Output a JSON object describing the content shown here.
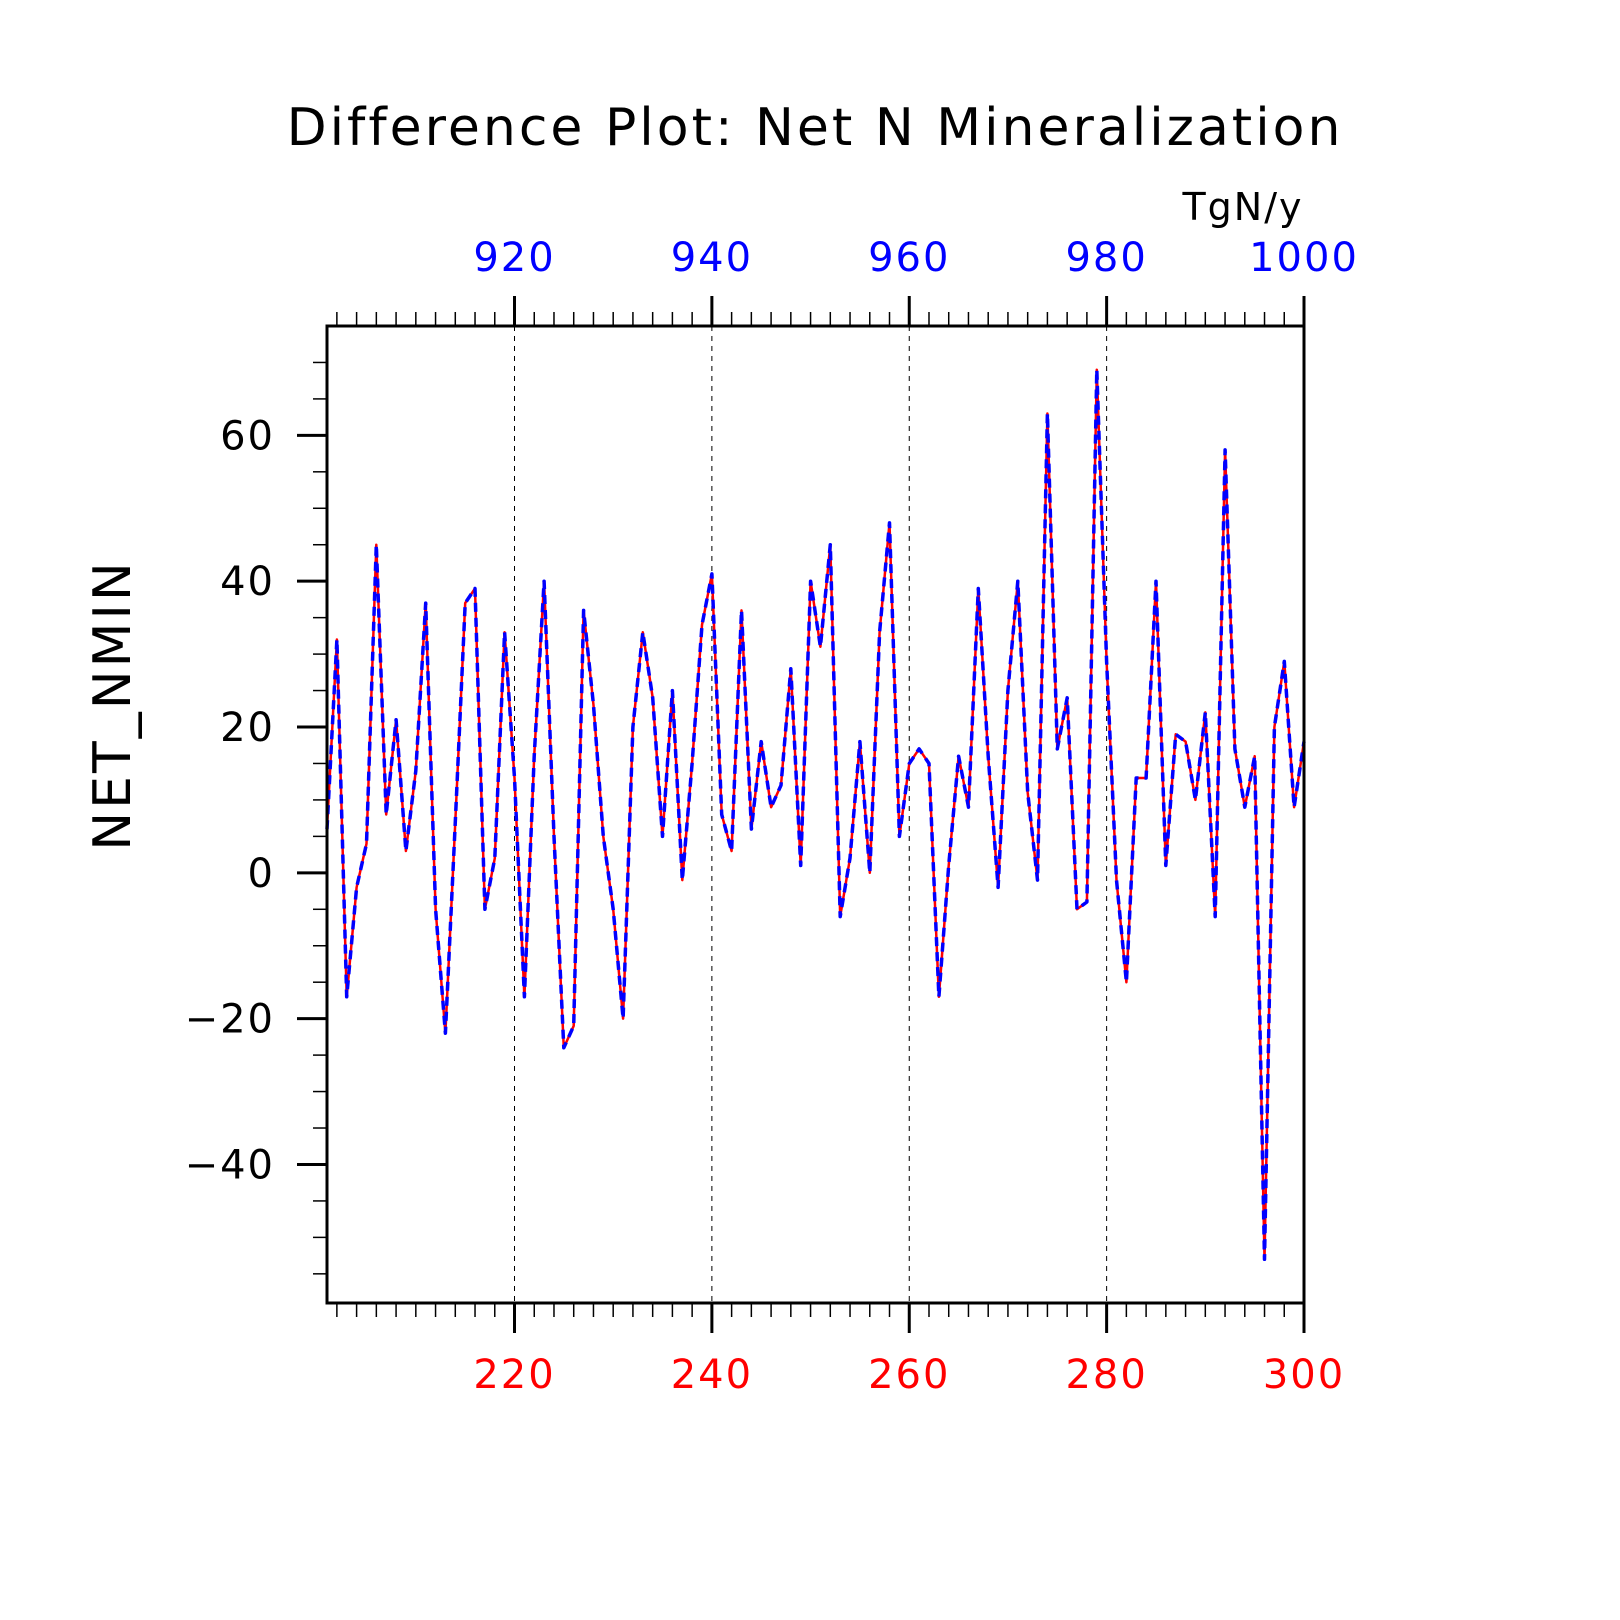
{
  "chart_data": {
    "type": "line",
    "title": "Difference Plot: Net N Mineralization",
    "units": "TgN/y",
    "ylabel": "NET_NMIN",
    "xlabel": "",
    "xlim": [
      201,
      300
    ],
    "ylim": [
      -59,
      75
    ],
    "top_xlim": [
      901,
      1000
    ],
    "bottom_ticks": [
      "220",
      "240",
      "260",
      "280",
      "300"
    ],
    "bottom_tick_values": [
      220,
      240,
      260,
      280,
      300
    ],
    "top_ticks": [
      "920",
      "940",
      "960",
      "980",
      "1000"
    ],
    "top_tick_values": [
      920,
      940,
      960,
      980,
      1000
    ],
    "y_ticks": [
      "60",
      "40",
      "20",
      "0",
      "−20",
      "−40"
    ],
    "y_tick_values": [
      60,
      40,
      20,
      0,
      -20,
      -40
    ],
    "grid": "vertical dashed at major x ticks",
    "colors": {
      "bottom_axis": "#ff0000",
      "top_axis": "#0000ff",
      "frame": "#000000"
    },
    "series": [
      {
        "axis": "bottom",
        "color": "#ff0000",
        "style": "solid",
        "x": [
          201,
          202,
          203,
          204,
          205,
          206,
          207,
          208,
          209,
          210,
          211,
          212,
          213,
          214,
          215,
          216,
          217,
          218,
          219,
          220,
          221,
          222,
          223,
          224,
          225,
          226,
          227,
          228,
          229,
          230,
          231,
          232,
          233,
          234,
          235,
          236,
          237,
          238,
          239,
          240,
          241,
          242,
          243,
          244,
          245,
          246,
          247,
          248,
          249,
          250,
          251,
          252,
          253,
          254,
          255,
          256,
          257,
          258,
          259,
          260,
          261,
          262,
          263,
          264,
          265,
          266,
          267,
          268,
          269,
          270,
          271,
          272,
          273,
          274,
          275,
          276,
          277,
          278,
          279,
          280,
          281,
          282,
          283,
          284,
          285,
          286,
          287,
          288,
          289,
          290,
          291,
          292,
          293,
          294,
          295,
          296,
          297,
          298,
          299,
          300
        ],
        "values": [
          6,
          32,
          -17,
          -2,
          4,
          45,
          8,
          21,
          3,
          14,
          37,
          -5,
          -22,
          7,
          37,
          39,
          -5,
          2,
          33,
          13,
          -17,
          16,
          40,
          5,
          -24,
          -21,
          36,
          23,
          5,
          -5,
          -20,
          20,
          33,
          24,
          5,
          25,
          -1,
          15,
          34,
          41,
          8,
          3,
          36,
          6,
          18,
          9,
          12,
          28,
          1,
          40,
          31,
          45,
          -6,
          2,
          18,
          0,
          33,
          48,
          5,
          15,
          17,
          15,
          -17,
          1,
          16,
          9,
          39,
          16,
          -2,
          25,
          40,
          11,
          -1,
          63,
          17,
          24,
          -5,
          -4,
          69,
          29,
          -1,
          -15,
          13,
          13,
          40,
          1,
          19,
          18,
          10,
          22,
          -6,
          58,
          17,
          9,
          16,
          -53,
          20,
          29,
          9,
          18
        ]
      },
      {
        "axis": "top",
        "color": "#0000ff",
        "style": "dashed",
        "x": [
          901,
          902,
          903,
          904,
          905,
          906,
          907,
          908,
          909,
          910,
          911,
          912,
          913,
          914,
          915,
          916,
          917,
          918,
          919,
          920,
          921,
          922,
          923,
          924,
          925,
          926,
          927,
          928,
          929,
          930,
          931,
          932,
          933,
          934,
          935,
          936,
          937,
          938,
          939,
          940,
          941,
          942,
          943,
          944,
          945,
          946,
          947,
          948,
          949,
          950,
          951,
          952,
          953,
          954,
          955,
          956,
          957,
          958,
          959,
          960,
          961,
          962,
          963,
          964,
          965,
          966,
          967,
          968,
          969,
          970,
          971,
          972,
          973,
          974,
          975,
          976,
          977,
          978,
          979,
          980,
          981,
          982,
          983,
          984,
          985,
          986,
          987,
          988,
          989,
          990,
          991,
          992,
          993,
          994,
          995,
          996,
          997,
          998,
          999,
          1000
        ],
        "values": [
          6,
          32,
          -17,
          -2,
          4,
          45,
          8,
          21,
          3,
          14,
          37,
          -5,
          -22,
          7,
          37,
          39,
          -5,
          2,
          33,
          13,
          -17,
          16,
          40,
          5,
          -24,
          -21,
          36,
          23,
          5,
          -5,
          -20,
          20,
          33,
          24,
          5,
          25,
          -1,
          15,
          34,
          41,
          8,
          3,
          36,
          6,
          18,
          9,
          12,
          28,
          1,
          40,
          31,
          45,
          -6,
          2,
          18,
          0,
          33,
          48,
          5,
          15,
          17,
          15,
          -17,
          1,
          16,
          9,
          39,
          16,
          -2,
          25,
          40,
          11,
          -1,
          63,
          17,
          24,
          -5,
          -4,
          69,
          29,
          -1,
          -15,
          13,
          13,
          40,
          1,
          19,
          18,
          10,
          22,
          -6,
          58,
          17,
          9,
          16,
          -53,
          20,
          29,
          9,
          18
        ]
      }
    ]
  }
}
